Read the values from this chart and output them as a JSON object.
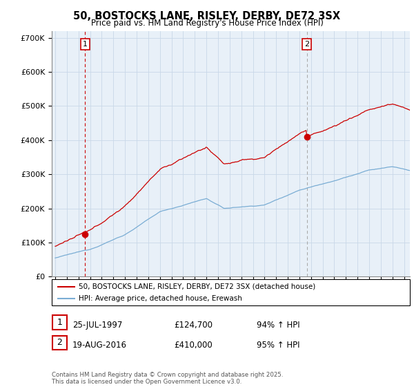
{
  "title1": "50, BOSTOCKS LANE, RISLEY, DERBY, DE72 3SX",
  "title2": "Price paid vs. HM Land Registry's House Price Index (HPI)",
  "ytick_vals": [
    0,
    100000,
    200000,
    300000,
    400000,
    500000,
    600000,
    700000
  ],
  "ylim": [
    0,
    720000
  ],
  "xlim_start": 1994.7,
  "xlim_end": 2025.5,
  "sale1_date": 1997.57,
  "sale1_price": 124700,
  "sale2_date": 2016.63,
  "sale2_price": 410000,
  "legend_line1": "50, BOSTOCKS LANE, RISLEY, DERBY, DE72 3SX (detached house)",
  "legend_line2": "HPI: Average price, detached house, Erewash",
  "footer": "Contains HM Land Registry data © Crown copyright and database right 2025.\nThis data is licensed under the Open Government Licence v3.0.",
  "red_color": "#cc0000",
  "blue_color": "#7aadd4",
  "grid_color": "#c8d8e8",
  "chart_bg": "#e8f0f8",
  "background_color": "#ffffff"
}
